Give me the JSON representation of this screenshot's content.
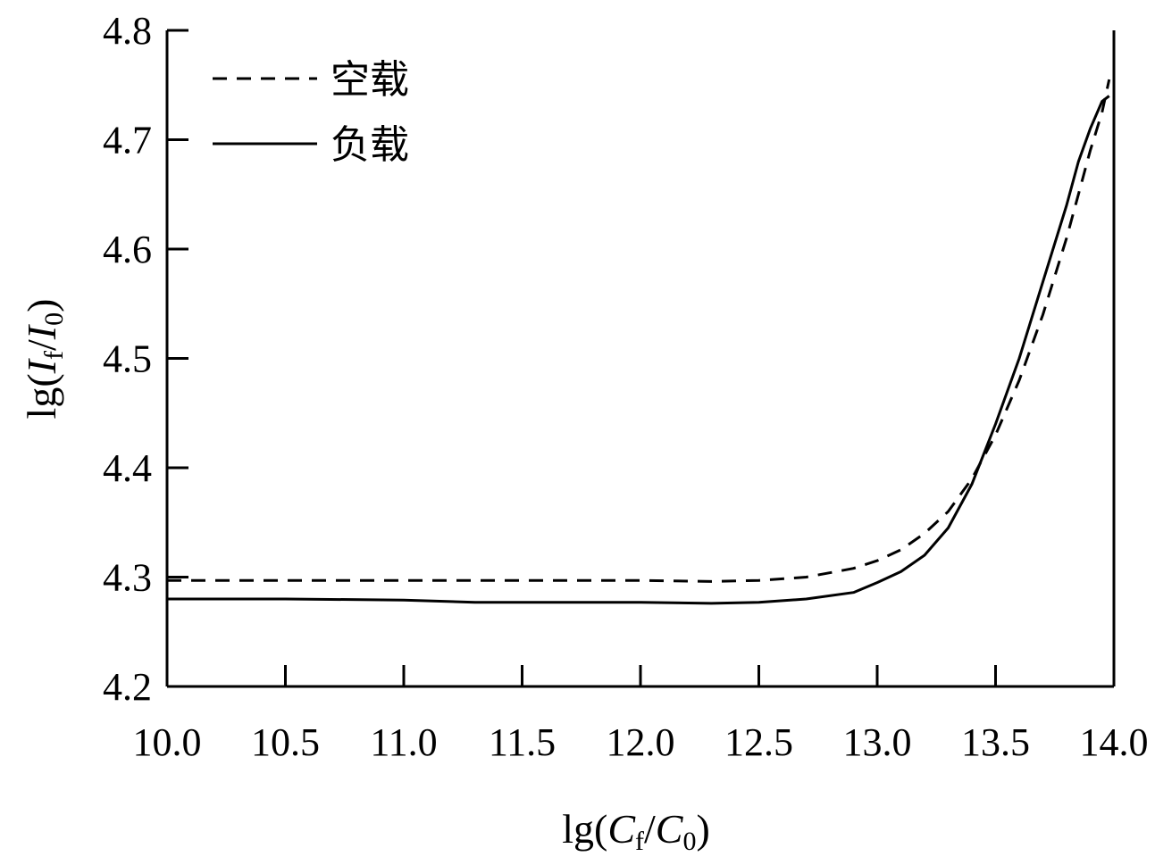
{
  "chart_data": {
    "type": "line",
    "xlabel": {
      "prefix": "lg(",
      "num": "C",
      "num_sub": "f",
      "slash": "/",
      "den": "C",
      "den_sub": "0",
      "suffix": ")"
    },
    "ylabel": {
      "prefix": "lg(",
      "num": "I",
      "num_sub": "f",
      "slash": "/",
      "den": "I",
      "den_sub": "0",
      "suffix": ")"
    },
    "xlim": [
      10.0,
      14.0
    ],
    "ylim": [
      4.2,
      4.8
    ],
    "x_ticks": [
      "10.0",
      "10.5",
      "11.0",
      "11.5",
      "12.0",
      "12.5",
      "13.0",
      "13.5",
      "14.0"
    ],
    "y_ticks": [
      "4.2",
      "4.3",
      "4.4",
      "4.5",
      "4.6",
      "4.7",
      "4.8"
    ],
    "grid": false,
    "legend_position": "top-left",
    "series": [
      {
        "name": "空载",
        "style": "dashed",
        "color": "#000000",
        "x": [
          10.0,
          10.5,
          11.0,
          11.5,
          12.0,
          12.3,
          12.5,
          12.7,
          12.9,
          13.0,
          13.1,
          13.2,
          13.3,
          13.4,
          13.5,
          13.6,
          13.7,
          13.8,
          13.85,
          13.9,
          13.95,
          13.98
        ],
        "y": [
          4.297,
          4.297,
          4.297,
          4.297,
          4.297,
          4.296,
          4.297,
          4.3,
          4.308,
          4.315,
          4.325,
          4.34,
          4.36,
          4.39,
          4.43,
          4.48,
          4.54,
          4.61,
          4.65,
          4.69,
          4.725,
          4.755
        ]
      },
      {
        "name": "负载",
        "style": "solid",
        "color": "#000000",
        "x": [
          10.0,
          10.5,
          11.0,
          11.3,
          11.5,
          12.0,
          12.3,
          12.5,
          12.7,
          12.9,
          13.0,
          13.1,
          13.2,
          13.3,
          13.4,
          13.5,
          13.6,
          13.7,
          13.8,
          13.85,
          13.9,
          13.95,
          13.98
        ],
        "y": [
          4.28,
          4.28,
          4.279,
          4.277,
          4.277,
          4.277,
          4.276,
          4.277,
          4.28,
          4.286,
          4.295,
          4.305,
          4.32,
          4.345,
          4.385,
          4.44,
          4.5,
          4.57,
          4.64,
          4.68,
          4.71,
          4.735,
          4.74
        ]
      }
    ]
  }
}
